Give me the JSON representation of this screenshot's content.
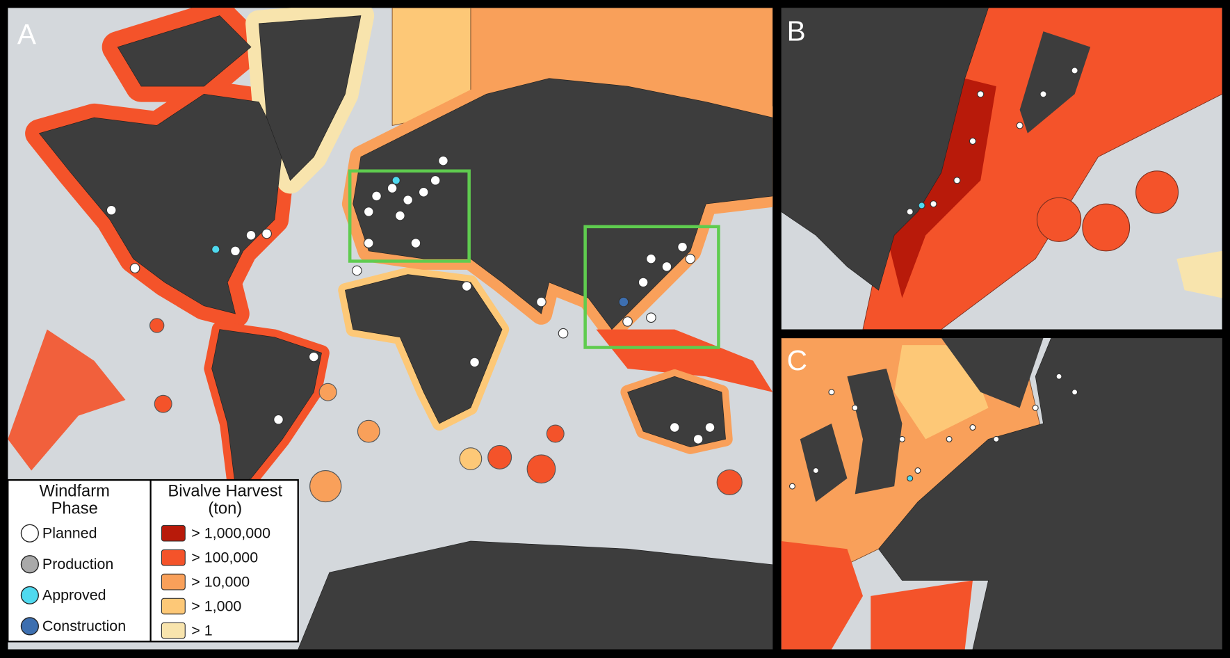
{
  "panels": [
    {
      "label": "A"
    },
    {
      "label": "B"
    },
    {
      "label": "C"
    }
  ],
  "legend": {
    "windfarm": {
      "title": "Windfarm Phase",
      "items": [
        {
          "label": "Planned",
          "color": "#ffffff"
        },
        {
          "label": "Production",
          "color": "#a9a9a9"
        },
        {
          "label": "Approved",
          "color": "#4fd9ef"
        },
        {
          "label": "Construction",
          "color": "#3d6fb0"
        }
      ]
    },
    "harvest": {
      "title": "Bivalve Harvest (ton)",
      "items": [
        {
          "label": "> 1,000,000",
          "color": "#b81a0a"
        },
        {
          "label": "> 100,000",
          "color": "#f4532a"
        },
        {
          "label": "> 10,000",
          "color": "#f9a05a"
        },
        {
          "label": "> 1,000",
          "color": "#fdc877"
        },
        {
          "label": "> 1",
          "color": "#f8e4ad"
        }
      ]
    }
  }
}
